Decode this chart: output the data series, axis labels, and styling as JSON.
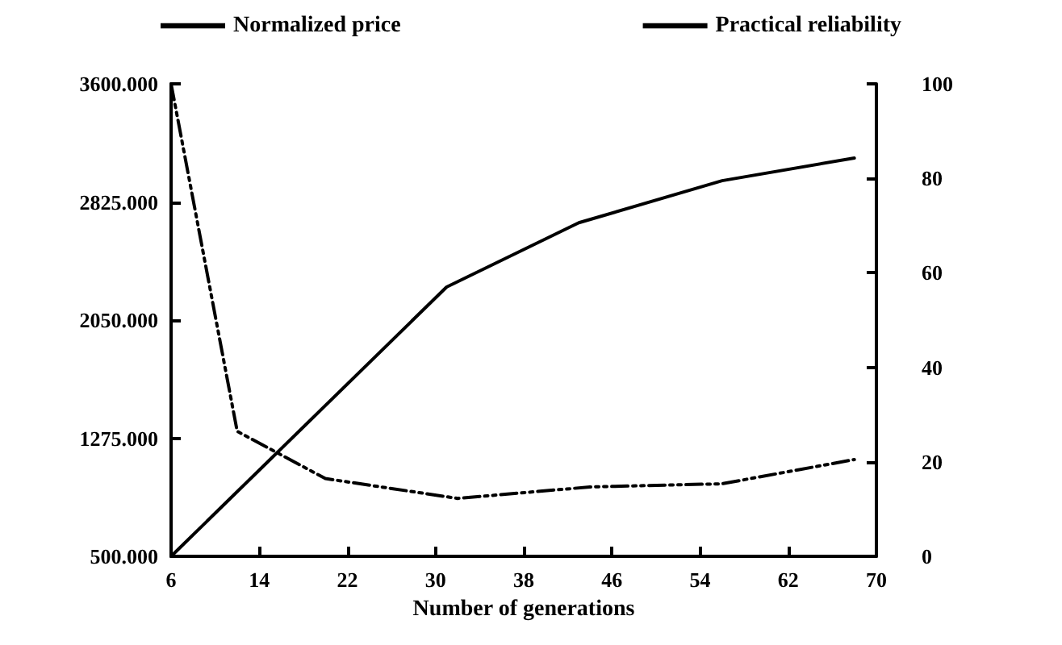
{
  "chart_data": {
    "type": "line",
    "xlabel": "Number of generations",
    "legend": "top",
    "grid": false,
    "marker": "none",
    "xlim": [
      6,
      70
    ],
    "xticks": [
      6,
      14,
      22,
      30,
      38,
      46,
      54,
      62,
      70
    ],
    "ylim": [
      500,
      3600
    ],
    "yticks": [
      {
        "value": 500,
        "label": "500.000"
      },
      {
        "value": 1275,
        "label": "1275.000"
      },
      {
        "value": 2050,
        "label": "2050.000"
      },
      {
        "value": 2825,
        "label": "2825.000"
      },
      {
        "value": 3600,
        "label": "3600.000"
      }
    ],
    "y2lim": [
      0,
      100
    ],
    "y2ticks": [
      0,
      20,
      40,
      60,
      80,
      100
    ],
    "series": [
      {
        "name": "Normalized price",
        "color": "#000000",
        "line_style": "dashed",
        "x": [
          6,
          12,
          20,
          32,
          44,
          56,
          68
        ],
        "values": [
          3600,
          1320,
          1010,
          880,
          955,
          976,
          1135
        ]
      },
      {
        "name": "Practical reliability",
        "color": "#000000",
        "line_style": "solid",
        "axis": "y2",
        "x": [
          6,
          31,
          43,
          56,
          68
        ],
        "values": [
          0,
          57,
          70.6,
          79.5,
          84.3
        ]
      }
    ]
  }
}
